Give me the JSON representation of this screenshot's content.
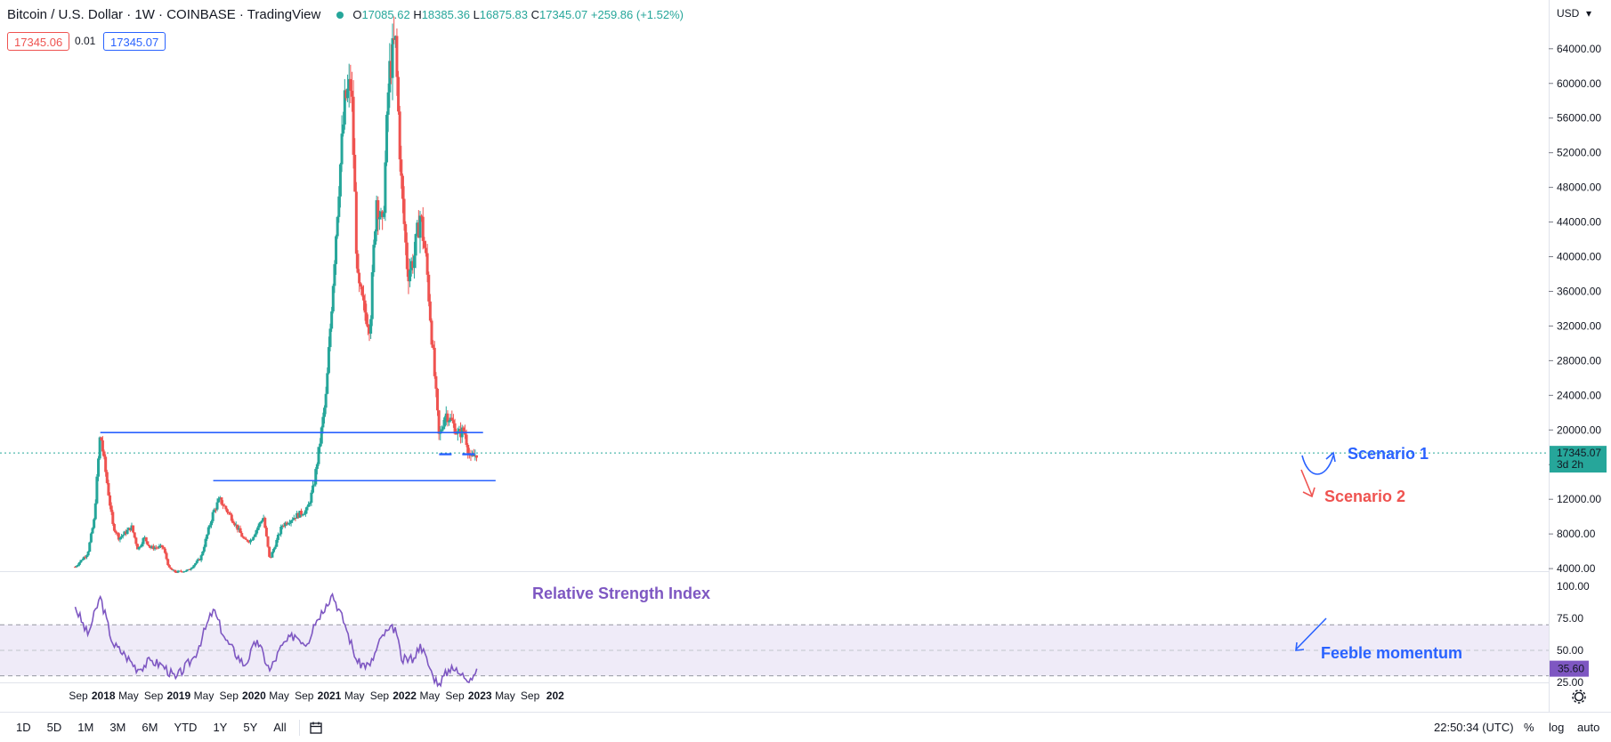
{
  "header": {
    "symbol": "Bitcoin / U.S. Dollar · 1W · COINBASE · TradingView",
    "open_label": "O",
    "open": "17085.62",
    "high_label": "H",
    "high": "18385.36",
    "low_label": "L",
    "low": "16875.83",
    "close_label": "C",
    "close": "17345.07",
    "change": "+259.86 (+1.52%)"
  },
  "bid": "17345.06",
  "spread": "0.01",
  "ask": "17345.07",
  "currency": "USD",
  "last_price": {
    "value": "17345.07",
    "countdown": "3d 2h",
    "color": "#26a69a"
  },
  "colors": {
    "up": "#26a69a",
    "down": "#ef5350",
    "level": "#2962ff",
    "rsi": "#7e57c2",
    "scenario2": "#ef5350"
  },
  "annotations": {
    "scenario1": "Scenario 1",
    "scenario2": "Scenario 2",
    "rsi_title": "Relative Strength Index",
    "feeble": "Feeble momentum"
  },
  "timeframes": [
    "1D",
    "5D",
    "1M",
    "3M",
    "6M",
    "YTD",
    "1Y",
    "5Y",
    "All"
  ],
  "bottom_right": {
    "time": "22:50:34 (UTC)",
    "percent": "%",
    "log": "log",
    "auto": "auto"
  },
  "icons": {
    "calendar": "calendar-range-icon",
    "settings": "gear-icon"
  },
  "chart_data": {
    "type": "candlestick",
    "interval": "1W",
    "price_axis": {
      "ticks": [
        4000,
        8000,
        12000,
        16000,
        20000,
        24000,
        28000,
        32000,
        36000,
        40000,
        44000,
        48000,
        52000,
        56000,
        60000,
        64000
      ],
      "ylim": [
        3600,
        68600
      ],
      "scale": "linear"
    },
    "x_ticks": [
      "Sep",
      "2018",
      "May",
      "Sep",
      "2019",
      "May",
      "Sep",
      "2020",
      "May",
      "Sep",
      "2021",
      "May",
      "Sep",
      "2022",
      "May",
      "Sep",
      "2023",
      "May",
      "Sep",
      "202"
    ],
    "levels": [
      {
        "name": "resistance",
        "price": 19700,
        "from": "2017-12",
        "to": "2023-01"
      },
      {
        "name": "support",
        "price": 14150,
        "from": "2019-06",
        "to": "2023-03"
      },
      {
        "name": "dashed support",
        "price": 17200,
        "from": "2022-06",
        "to": "2022-12"
      }
    ],
    "ohlc_path": [
      [
        "2017-08",
        4200
      ],
      [
        "2017-10",
        5800
      ],
      [
        "2017-11",
        9500
      ],
      [
        "2017-12",
        19700
      ],
      [
        "2018-02",
        9000
      ],
      [
        "2018-03",
        7500
      ],
      [
        "2018-05",
        8800
      ],
      [
        "2018-06",
        6200
      ],
      [
        "2018-07",
        7600
      ],
      [
        "2018-08",
        6400
      ],
      [
        "2018-10",
        6500
      ],
      [
        "2018-11",
        4000
      ],
      [
        "2018-12",
        3600
      ],
      [
        "2019-02",
        3800
      ],
      [
        "2019-04",
        5200
      ],
      [
        "2019-06",
        10500
      ],
      [
        "2019-07",
        12000
      ],
      [
        "2019-09",
        9800
      ],
      [
        "2019-10",
        8500
      ],
      [
        "2019-11",
        7200
      ],
      [
        "2019-12",
        7300
      ],
      [
        "2020-02",
        10000
      ],
      [
        "2020-03",
        5000
      ],
      [
        "2020-05",
        9000
      ],
      [
        "2020-07",
        10000
      ],
      [
        "2020-09",
        10800
      ],
      [
        "2020-10",
        13500
      ],
      [
        "2020-11",
        18500
      ],
      [
        "2020-12",
        24000
      ],
      [
        "2021-01",
        36000
      ],
      [
        "2021-02",
        48000
      ],
      [
        "2021-03",
        58000
      ],
      [
        "2021-04",
        60000
      ],
      [
        "2021-05",
        37000
      ],
      [
        "2021-06",
        34000
      ],
      [
        "2021-07",
        32000
      ],
      [
        "2021-08",
        47000
      ],
      [
        "2021-09",
        43000
      ],
      [
        "2021-10",
        61000
      ],
      [
        "2021-11",
        65000
      ],
      [
        "2021-12",
        48000
      ],
      [
        "2022-01",
        38000
      ],
      [
        "2022-02",
        40000
      ],
      [
        "2022-03",
        45000
      ],
      [
        "2022-04",
        39000
      ],
      [
        "2022-05",
        29000
      ],
      [
        "2022-06",
        19000
      ],
      [
        "2022-07",
        22000
      ],
      [
        "2022-08",
        21000
      ],
      [
        "2022-09",
        19500
      ],
      [
        "2022-10",
        20000
      ],
      [
        "2022-11",
        16500
      ],
      [
        "2022-12",
        17345
      ]
    ],
    "rsi": {
      "title": "Relative Strength Index",
      "ticks": [
        25,
        50,
        75,
        100
      ],
      "band": [
        30,
        70
      ],
      "current": "35.60",
      "path": [
        [
          "2017-08",
          84
        ],
        [
          "2017-10",
          62
        ],
        [
          "2017-12",
          92
        ],
        [
          "2018-02",
          55
        ],
        [
          "2018-04",
          46
        ],
        [
          "2018-06",
          35
        ],
        [
          "2018-08",
          42
        ],
        [
          "2018-10",
          38
        ],
        [
          "2018-12",
          28
        ],
        [
          "2019-03",
          45
        ],
        [
          "2019-06",
          82
        ],
        [
          "2019-08",
          58
        ],
        [
          "2019-11",
          38
        ],
        [
          "2020-01",
          58
        ],
        [
          "2020-03",
          34
        ],
        [
          "2020-05",
          54
        ],
        [
          "2020-07",
          62
        ],
        [
          "2020-09",
          55
        ],
        [
          "2020-10",
          70
        ],
        [
          "2020-12",
          86
        ],
        [
          "2021-01",
          94
        ],
        [
          "2021-03",
          70
        ],
        [
          "2021-05",
          40
        ],
        [
          "2021-07",
          38
        ],
        [
          "2021-09",
          62
        ],
        [
          "2021-11",
          68
        ],
        [
          "2021-12",
          42
        ],
        [
          "2022-02",
          44
        ],
        [
          "2022-03",
          55
        ],
        [
          "2022-05",
          30
        ],
        [
          "2022-06",
          24
        ],
        [
          "2022-08",
          38
        ],
        [
          "2022-09",
          32
        ],
        [
          "2022-11",
          28
        ],
        [
          "2022-12",
          35.6
        ]
      ]
    }
  }
}
